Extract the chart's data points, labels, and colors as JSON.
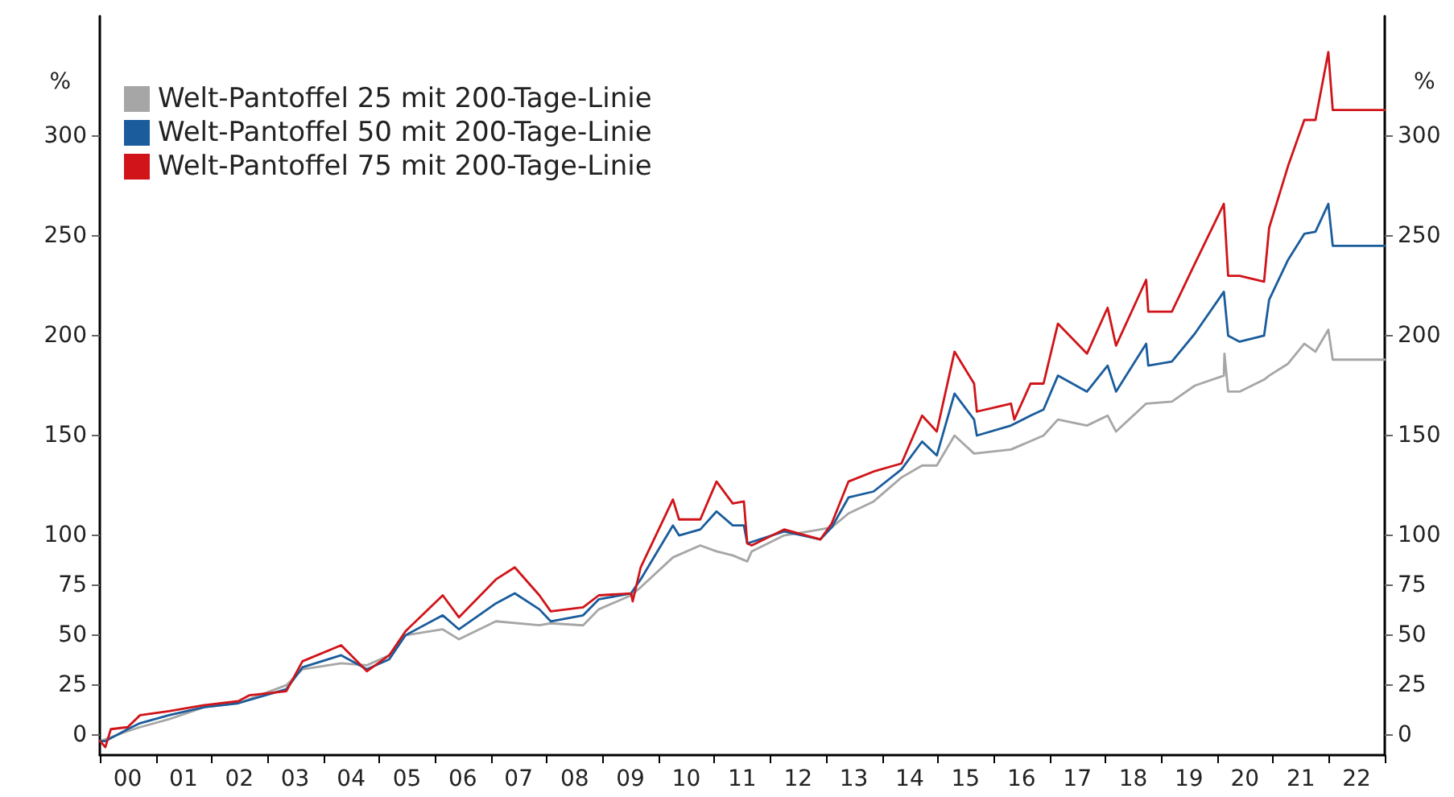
{
  "chart_data": {
    "type": "line",
    "ylabel": "%",
    "y2label": "%",
    "legend": "top left",
    "grid": false,
    "marker": "none",
    "line_style": "solid",
    "xlim": [
      "2000-01-01",
      "2023-01-01"
    ],
    "xticks": [
      {
        "value": "2000-01-01",
        "label": null
      },
      {
        "value": "2000-07-01",
        "label": "00"
      },
      {
        "value": "2001-01-01",
        "label": null
      },
      {
        "value": "2001-07-01",
        "label": "01"
      },
      {
        "value": "2002-01-01",
        "label": null
      },
      {
        "value": "2002-07-01",
        "label": "02"
      },
      {
        "value": "2003-01-01",
        "label": null
      },
      {
        "value": "2003-07-01",
        "label": "03"
      },
      {
        "value": "2004-01-01",
        "label": null
      },
      {
        "value": "2004-07-01",
        "label": "04"
      },
      {
        "value": "2005-01-01",
        "label": null
      },
      {
        "value": "2005-07-01",
        "label": "05"
      },
      {
        "value": "2006-01-01",
        "label": null
      },
      {
        "value": "2006-07-01",
        "label": "06"
      },
      {
        "value": "2007-01-01",
        "label": null
      },
      {
        "value": "2007-07-01",
        "label": "07"
      },
      {
        "value": "2008-01-01",
        "label": null
      },
      {
        "value": "2008-07-01",
        "label": "08"
      },
      {
        "value": "2009-01-01",
        "label": null
      },
      {
        "value": "2009-07-01",
        "label": "09"
      },
      {
        "value": "2010-01-01",
        "label": null
      },
      {
        "value": "2010-07-01",
        "label": "10"
      },
      {
        "value": "2011-01-01",
        "label": null
      },
      {
        "value": "2011-07-01",
        "label": "11"
      },
      {
        "value": "2012-01-01",
        "label": null
      },
      {
        "value": "2012-07-01",
        "label": "12"
      },
      {
        "value": "2013-01-01",
        "label": null
      },
      {
        "value": "2013-07-01",
        "label": "13"
      },
      {
        "value": "2014-01-01",
        "label": null
      },
      {
        "value": "2014-07-01",
        "label": "14"
      },
      {
        "value": "2015-01-01",
        "label": null
      },
      {
        "value": "2015-07-01",
        "label": "15"
      },
      {
        "value": "2016-01-01",
        "label": null
      },
      {
        "value": "2016-07-01",
        "label": "16"
      },
      {
        "value": "2017-01-01",
        "label": null
      },
      {
        "value": "2017-07-01",
        "label": "17"
      },
      {
        "value": "2018-01-01",
        "label": null
      },
      {
        "value": "2018-07-01",
        "label": "18"
      },
      {
        "value": "2019-01-01",
        "label": null
      },
      {
        "value": "2019-07-01",
        "label": "19"
      },
      {
        "value": "2020-01-01",
        "label": null
      },
      {
        "value": "2020-07-01",
        "label": "20"
      },
      {
        "value": "2021-01-01",
        "label": null
      },
      {
        "value": "2021-07-01",
        "label": "21"
      },
      {
        "value": "2022-01-01",
        "label": null
      },
      {
        "value": "2022-07-01",
        "label": "22"
      },
      {
        "value": "2023-01-01",
        "label": null
      }
    ],
    "ylim": [
      -10,
      360
    ],
    "yticks": [
      0,
      25,
      50,
      75,
      100,
      150,
      200,
      250,
      300
    ],
    "y2lim": [
      -10,
      360
    ],
    "y2ticks": [
      0,
      25,
      50,
      75,
      100,
      150,
      200,
      250,
      300
    ],
    "series": [
      {
        "name": "Welt-Pantoffel 25 mit 200-Tage-Linie",
        "color": "#a6a6a6",
        "x": [
          "2000-01-03",
          "2000-07-01",
          "2000-09-20",
          "2001-03-28",
          "2001-11-14",
          "2002-06-24",
          "2003-05-04",
          "2003-08-18",
          "2004-04-27",
          "2004-10-12",
          "2005-03-07",
          "2005-06-21",
          "2006-02-20",
          "2006-06-06",
          "2007-02-03",
          "2007-11-14",
          "2008-01-27",
          "2008-08-26",
          "2008-12-06",
          "2009-07-05",
          "2009-09-06",
          "2010-04-05",
          "2010-10-01",
          "2011-01-15",
          "2011-05-01",
          "2011-08-04",
          "2011-09-02",
          "2012-04-01",
          "2012-11-24",
          "2013-02-06",
          "2013-05-27",
          "2013-11-07",
          "2014-05-08",
          "2014-09-20",
          "2014-12-25",
          "2015-04-20",
          "2015-08-26",
          "2016-04-23",
          "2016-11-22",
          "2017-02-24",
          "2017-09-02",
          "2018-01-15",
          "2018-03-11",
          "2018-09-24",
          "2019-03-11",
          "2019-08-08",
          "2020-02-14",
          "2020-02-18",
          "2020-03-13",
          "2020-05-27",
          "2020-11-03",
          "2020-12-06",
          "2021-04-09",
          "2021-07-24",
          "2021-10-05",
          "2021-12-28",
          "2022-01-26",
          "2022-12-31"
        ],
        "values": [
          -3,
          2,
          4,
          8,
          14,
          16,
          25,
          33,
          36,
          35,
          40,
          50,
          53,
          48,
          57,
          55,
          56,
          55,
          63,
          70,
          74,
          89,
          95,
          92,
          90,
          87,
          92,
          100,
          103,
          104,
          111,
          117,
          129,
          135,
          135,
          150,
          141,
          143,
          150,
          158,
          155,
          160,
          152,
          166,
          167,
          175,
          180,
          191,
          172,
          172,
          178,
          180,
          186,
          196,
          192,
          203,
          188,
          188
        ]
      },
      {
        "name": "Welt-Pantoffel 50 mit 200-Tage-Linie",
        "color": "#1a5c9c",
        "x": [
          "2000-01-03",
          "2000-02-06",
          "2000-07-01",
          "2000-09-20",
          "2001-03-28",
          "2001-11-14",
          "2002-06-24",
          "2003-05-04",
          "2003-08-18",
          "2004-04-27",
          "2004-10-12",
          "2005-03-07",
          "2005-06-21",
          "2006-02-20",
          "2006-06-06",
          "2007-02-03",
          "2007-06-06",
          "2007-11-14",
          "2008-01-27",
          "2008-08-26",
          "2008-12-06",
          "2009-07-05",
          "2009-09-06",
          "2010-04-05",
          "2010-05-15",
          "2010-10-01",
          "2011-01-15",
          "2011-05-01",
          "2011-07-13",
          "2011-08-04",
          "2012-04-01",
          "2012-11-24",
          "2013-02-06",
          "2013-05-27",
          "2013-11-07",
          "2014-05-08",
          "2014-09-20",
          "2014-12-25",
          "2015-04-20",
          "2015-08-26",
          "2015-09-13",
          "2016-04-23",
          "2016-08-29",
          "2016-11-22",
          "2017-02-24",
          "2017-09-02",
          "2018-01-15",
          "2018-03-11",
          "2018-09-24",
          "2018-10-08",
          "2019-03-11",
          "2019-08-08",
          "2020-02-14",
          "2020-03-13",
          "2020-05-27",
          "2020-11-03",
          "2020-12-06",
          "2021-04-09",
          "2021-07-24",
          "2021-10-05",
          "2021-12-28",
          "2022-01-26",
          "2022-12-31"
        ],
        "values": [
          -3,
          -3,
          3,
          6,
          10,
          14,
          16,
          23,
          34,
          40,
          33,
          38,
          50,
          60,
          53,
          66,
          71,
          63,
          57,
          60,
          68,
          71,
          78,
          105,
          100,
          103,
          112,
          105,
          105,
          96,
          102,
          98,
          104,
          119,
          122,
          133,
          147,
          140,
          171,
          158,
          150,
          155,
          160,
          163,
          180,
          172,
          185,
          172,
          196,
          185,
          187,
          201,
          222,
          200,
          197,
          200,
          218,
          238,
          251,
          252,
          266,
          245,
          245
        ]
      },
      {
        "name": "Welt-Pantoffel 75 mit 200-Tage-Linie",
        "color": "#d01419",
        "x": [
          "2000-01-03",
          "2000-02-06",
          "2000-03-13",
          "2000-07-01",
          "2000-09-20",
          "2001-03-28",
          "2001-11-14",
          "2002-06-24",
          "2002-09-06",
          "2003-05-04",
          "2003-08-18",
          "2004-04-27",
          "2004-10-12",
          "2005-03-07",
          "2005-06-21",
          "2006-02-20",
          "2006-06-06",
          "2007-02-03",
          "2007-06-06",
          "2007-11-14",
          "2008-01-27",
          "2008-08-26",
          "2008-12-06",
          "2009-07-05",
          "2009-07-16",
          "2009-09-06",
          "2010-04-05",
          "2010-05-15",
          "2010-10-01",
          "2011-01-15",
          "2011-05-01",
          "2011-07-13",
          "2011-08-04",
          "2011-09-02",
          "2012-04-01",
          "2012-11-24",
          "2013-02-06",
          "2013-05-27",
          "2013-11-07",
          "2014-05-08",
          "2014-09-20",
          "2014-12-25",
          "2015-04-20",
          "2015-08-26",
          "2015-09-13",
          "2016-04-23",
          "2016-05-15",
          "2016-08-29",
          "2016-11-22",
          "2017-02-24",
          "2017-09-02",
          "2018-01-15",
          "2018-03-11",
          "2018-09-24",
          "2018-10-08",
          "2019-03-11",
          "2019-08-08",
          "2020-02-14",
          "2020-03-13",
          "2020-05-27",
          "2020-11-03",
          "2020-12-06",
          "2021-04-09",
          "2021-07-24",
          "2021-10-05",
          "2021-12-28",
          "2022-01-26",
          "2022-12-31"
        ],
        "values": [
          -3,
          -6,
          3,
          4,
          10,
          12,
          15,
          17,
          20,
          22,
          37,
          45,
          32,
          40,
          52,
          70,
          59,
          78,
          84,
          70,
          62,
          64,
          70,
          71,
          67,
          84,
          118,
          108,
          108,
          127,
          116,
          117,
          96,
          95,
          103,
          98,
          106,
          127,
          132,
          136,
          160,
          152,
          192,
          176,
          162,
          166,
          158,
          176,
          176,
          206,
          191,
          214,
          195,
          228,
          212,
          212,
          236,
          266,
          230,
          230,
          227,
          254,
          285,
          308,
          308,
          342,
          313,
          313
        ]
      }
    ]
  }
}
